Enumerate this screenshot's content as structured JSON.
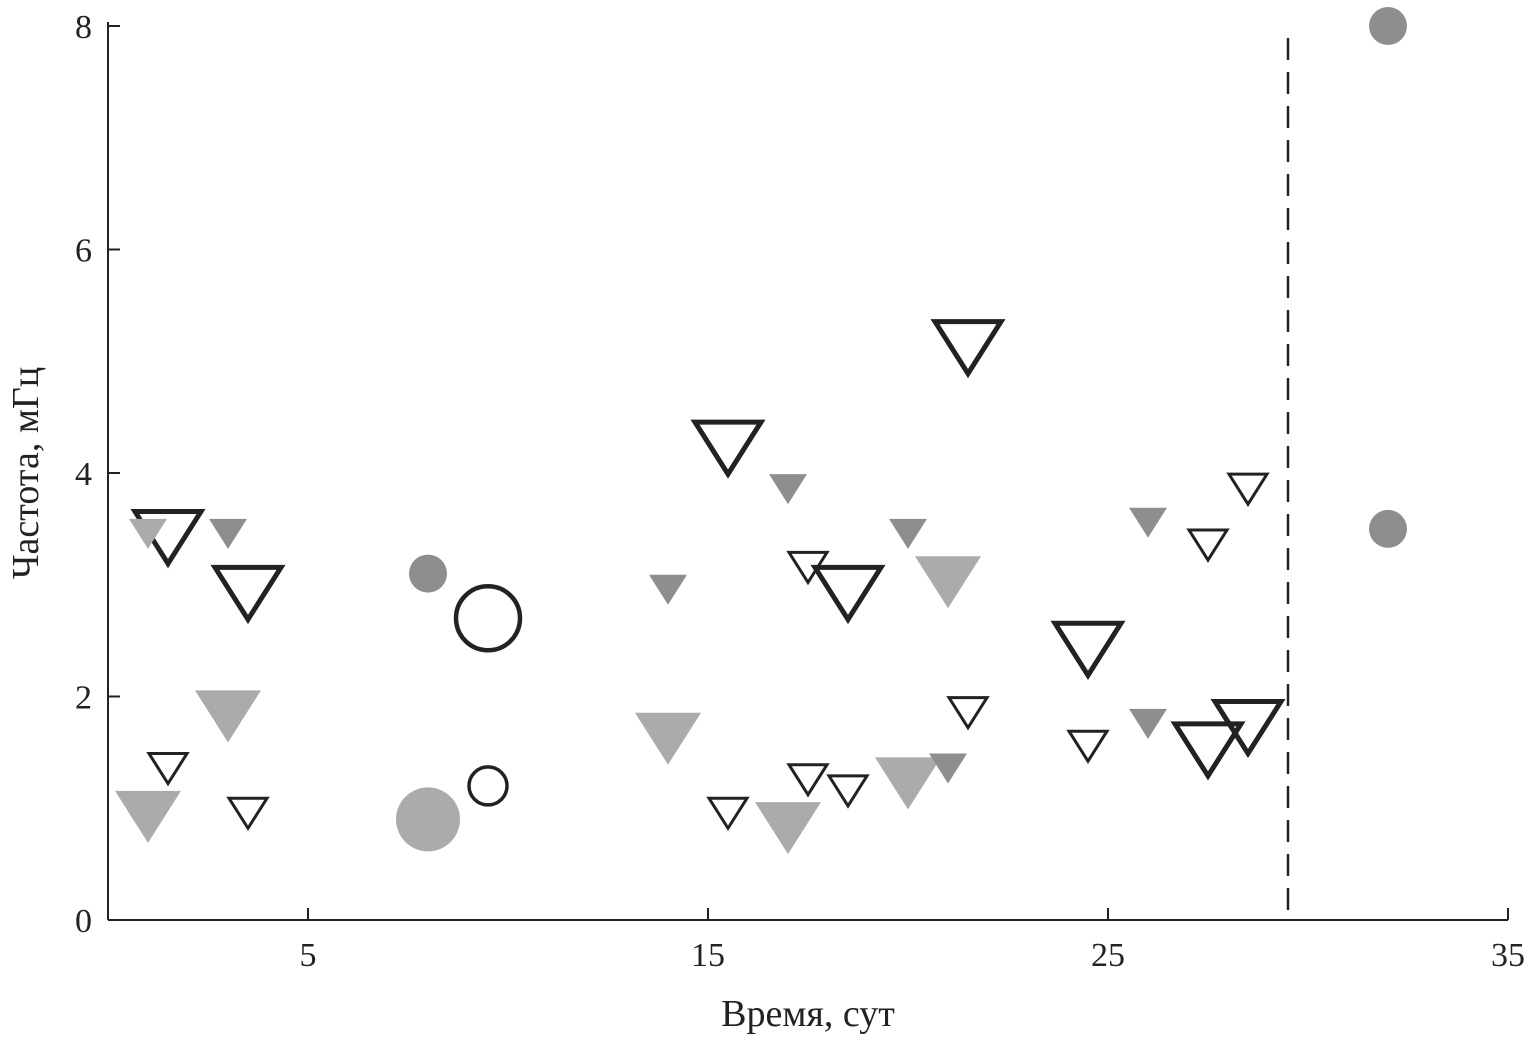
{
  "chart_data": {
    "type": "scatter",
    "xlabel": "Время, сут",
    "ylabel": "Частота, мГц",
    "xlim": [
      0,
      35
    ],
    "ylim": [
      0,
      8
    ],
    "xticks": [
      5,
      15,
      25,
      35
    ],
    "yticks": [
      0,
      2,
      4,
      6,
      8
    ],
    "grid": false,
    "legend": "none",
    "vertical_dashed_line_x": 29.5,
    "colors": {
      "axis": "#222222",
      "outline": "#222222",
      "gray_dark": "#8e8e8e",
      "gray_light": "#ababab"
    },
    "series": [
      {
        "marker": "triangle-down",
        "fill": "none",
        "size": "large",
        "points": [
          [
            1.5,
            3.5
          ],
          [
            3.5,
            3.0
          ],
          [
            15.5,
            4.3
          ],
          [
            18.5,
            3.0
          ],
          [
            21.5,
            5.2
          ],
          [
            24.5,
            2.5
          ],
          [
            27.5,
            1.6
          ],
          [
            28.5,
            1.8
          ]
        ]
      },
      {
        "marker": "triangle-down",
        "fill": "none",
        "size": "small",
        "points": [
          [
            1.5,
            1.4
          ],
          [
            3.5,
            1.0
          ],
          [
            15.5,
            1.0
          ],
          [
            17.5,
            3.2
          ],
          [
            17.5,
            1.3
          ],
          [
            18.5,
            1.2
          ],
          [
            21.5,
            1.9
          ],
          [
            24.5,
            1.6
          ],
          [
            27.5,
            3.4
          ],
          [
            28.5,
            3.9
          ]
        ]
      },
      {
        "marker": "triangle-down",
        "fill": "gray_light",
        "size": "large",
        "points": [
          [
            1.0,
            1.0
          ],
          [
            3.0,
            1.9
          ],
          [
            14.0,
            1.7
          ],
          [
            17.0,
            0.9
          ],
          [
            20.0,
            1.3
          ],
          [
            21.0,
            3.1
          ]
        ]
      },
      {
        "marker": "triangle-down",
        "fill": "gray_light",
        "size": "small",
        "points": [
          [
            1.0,
            3.5
          ]
        ]
      },
      {
        "marker": "triangle-down",
        "fill": "gray_dark",
        "size": "small",
        "points": [
          [
            3.0,
            3.5
          ],
          [
            14.0,
            3.0
          ],
          [
            17.0,
            3.9
          ],
          [
            20.0,
            3.5
          ],
          [
            21.0,
            1.4
          ],
          [
            26.0,
            3.6
          ],
          [
            26.0,
            1.8
          ]
        ]
      },
      {
        "marker": "circle",
        "fill": "none",
        "size": "large",
        "points": [
          [
            9.5,
            2.7
          ]
        ]
      },
      {
        "marker": "circle",
        "fill": "none",
        "size": "small",
        "points": [
          [
            9.5,
            1.2
          ]
        ]
      },
      {
        "marker": "circle",
        "fill": "gray_light",
        "size": "large",
        "points": [
          [
            8.0,
            0.9
          ]
        ]
      },
      {
        "marker": "circle",
        "fill": "gray_dark",
        "size": "small",
        "points": [
          [
            8.0,
            3.1
          ],
          [
            32.0,
            8.0
          ],
          [
            32.0,
            3.5
          ]
        ]
      }
    ]
  }
}
